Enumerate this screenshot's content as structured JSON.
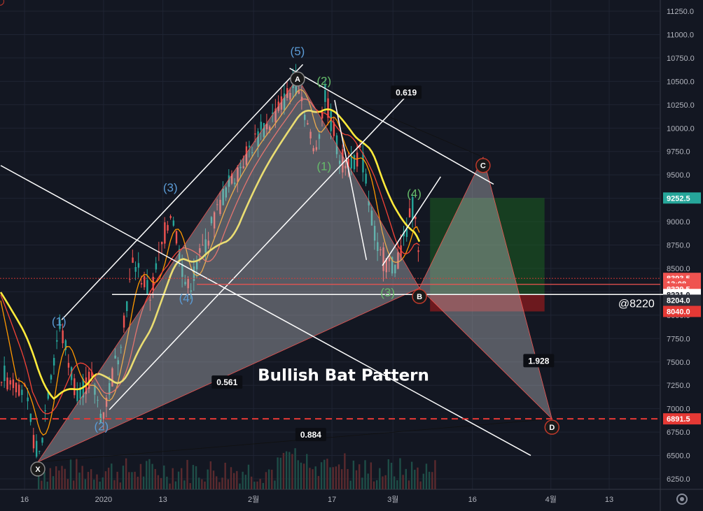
{
  "chart_data": {
    "type": "candlestick",
    "title": "Bullish Bat Pattern",
    "price_axis": {
      "ticks": [
        "11250.0",
        "11000.0",
        "10750.0",
        "10500.0",
        "10250.0",
        "10000.0",
        "9750.0",
        "9500.0",
        "9250.0",
        "9000.0",
        "8750.0",
        "8500.0",
        "8250.0",
        "8000.0",
        "7750.0",
        "7500.0",
        "7250.0",
        "7000.0",
        "6750.0",
        "6500.0",
        "6250.0"
      ],
      "range": [
        6170,
        11330
      ]
    },
    "time_axis": {
      "ticks": [
        "16",
        "2020",
        "13",
        "2월",
        "17",
        "3월",
        "16",
        "4월",
        "13"
      ]
    },
    "pattern_points": [
      {
        "label": "X",
        "date_index": 0,
        "price": 6430
      },
      {
        "label": "A",
        "date_index": 49,
        "price": 10540
      },
      {
        "label": "B",
        "date_index": 72,
        "price": 8290
      },
      {
        "label": "C",
        "date_index": 84,
        "price": 9690
      },
      {
        "label": "D",
        "date_index": 97,
        "price": 6891.5
      }
    ],
    "pattern_ratios": [
      "0.619",
      "0.561",
      "1.928",
      "0.884"
    ],
    "wave_labels": [
      {
        "text": "(1)",
        "group": "blue",
        "date_index": 4,
        "price": 7890
      },
      {
        "text": "(2)",
        "group": "blue",
        "date_index": 12,
        "price": 6770
      },
      {
        "text": "(3)",
        "group": "blue",
        "date_index": 25,
        "price": 9320
      },
      {
        "text": "(4)",
        "group": "blue",
        "date_index": 28,
        "price": 8140
      },
      {
        "text": "(5)",
        "group": "blue",
        "date_index": 49,
        "price": 10780
      },
      {
        "text": "(1)",
        "group": "green",
        "date_index": 54,
        "price": 9550
      },
      {
        "text": "(2)",
        "group": "green",
        "date_index": 54,
        "price": 10460
      },
      {
        "text": "(3)",
        "group": "green",
        "date_index": 66,
        "price": 8200
      },
      {
        "text": "(4)",
        "group": "green",
        "date_index": 71,
        "price": 9260
      }
    ],
    "price_tags": [
      {
        "text": "9252.5",
        "price": 9252.5,
        "color": "#26a69a"
      },
      {
        "text": "8393.5",
        "price": 8393.5,
        "color": "#ef5350"
      },
      {
        "text": "13:08",
        "price": 8335,
        "color": "#ef5350"
      },
      {
        "text": "8329.5",
        "price": 8280,
        "color": "#ef5350"
      },
      {
        "text": "8221.0",
        "price": 8221.0,
        "color": "#ffffff"
      },
      {
        "text": "8204.0",
        "price": 8160,
        "color": "#2a2e39"
      },
      {
        "text": "8040.0",
        "price": 8040.0,
        "color": "#e53935"
      },
      {
        "text": "6891.5",
        "price": 6891.5,
        "color": "#e53935"
      }
    ],
    "annotations": [
      "@8220"
    ],
    "colors": {
      "background": "#131722",
      "grid": "#1f2433",
      "axis_text": "#b2b5be",
      "up": "#26a69a",
      "down": "#ef5350",
      "ma_yellow": "#ffeb3b",
      "ma_orange": "#ff9800",
      "ma_red": "#f44336",
      "wave_blue": "#5b9bd5",
      "wave_green": "#66bb6a",
      "pattern_fill": "#c8c8cc",
      "profit_zone": "#1b5e20",
      "loss_zone": "#b71c1c"
    }
  }
}
